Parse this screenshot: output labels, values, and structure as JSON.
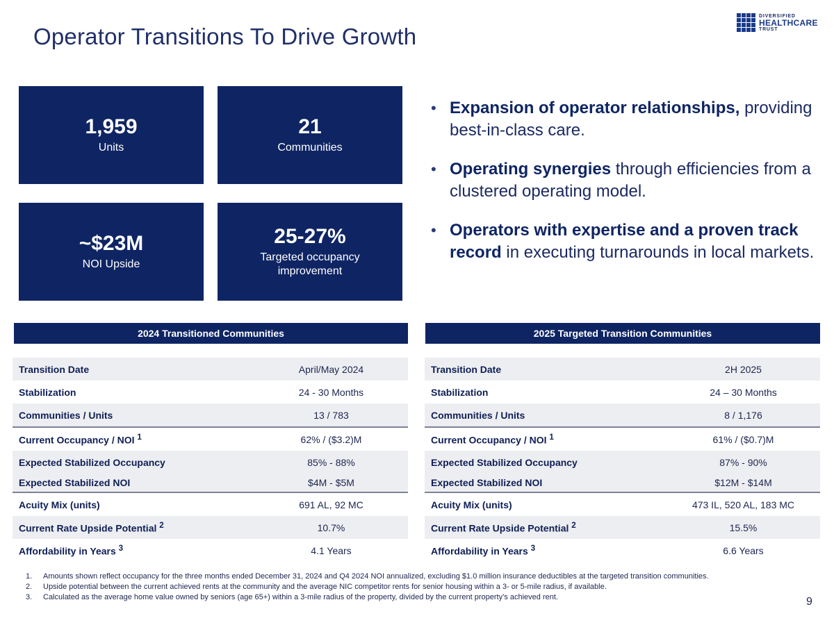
{
  "title": "Operator Transitions To Drive Growth",
  "logo": {
    "line1": "DIVERSIFIED",
    "line2": "HEALTHCARE",
    "line3": "TRUST"
  },
  "stats": [
    {
      "value": "1,959",
      "label": "Units",
      "label2": ""
    },
    {
      "value": "21",
      "label": "Communities",
      "label2": ""
    },
    {
      "value": "~$23M",
      "label": "NOI Upside",
      "label2": ""
    },
    {
      "value": "25-27%",
      "label": "Targeted occupancy",
      "label2": "improvement"
    }
  ],
  "bullets": [
    {
      "bold": "Expansion of operator relationships,",
      "rest": " providing best-in-class care."
    },
    {
      "bold": "Operating synergies",
      "rest": " through efficiencies from a clustered operating model."
    },
    {
      "bold": "Operators with expertise and a proven track record",
      "rest": " in executing turnarounds in local markets."
    }
  ],
  "tables": [
    {
      "heading": "2024 Transitioned Communities",
      "rows": [
        {
          "key": "Transition Date",
          "sup": "",
          "value": "April/May 2024"
        },
        {
          "key": "Stabilization",
          "sup": "",
          "value": "24 - 30 Months"
        },
        {
          "key": "Communities / Units",
          "sup": "",
          "value": "13 / 783"
        },
        {
          "key": "Current Occupancy / NOI",
          "sup": "1",
          "value": "62% / ($3.2)M"
        },
        {
          "key": "Expected Stabilized Occupancy",
          "sup": "",
          "value": "85% - 88%"
        },
        {
          "key": "Expected Stabilized NOI",
          "sup": "",
          "value": "$4M - $5M"
        },
        {
          "key": "Acuity Mix (units)",
          "sup": "",
          "value": "691 AL, 92 MC"
        },
        {
          "key": "Current Rate Upside Potential",
          "sup": "2",
          "value": "10.7%"
        },
        {
          "key": "Affordability in Years",
          "sup": "3",
          "value": "4.1 Years"
        }
      ]
    },
    {
      "heading": "2025 Targeted Transition Communities",
      "rows": [
        {
          "key": "Transition Date",
          "sup": "",
          "value": "2H 2025"
        },
        {
          "key": "Stabilization",
          "sup": "",
          "value": "24 – 30 Months"
        },
        {
          "key": "Communities / Units",
          "sup": "",
          "value": "8 / 1,176"
        },
        {
          "key": "Current Occupancy / NOI",
          "sup": "1",
          "value": "61% / ($0.7)M"
        },
        {
          "key": "Expected Stabilized Occupancy",
          "sup": "",
          "value": "87% - 90%"
        },
        {
          "key": "Expected Stabilized NOI",
          "sup": "",
          "value": "$12M - $14M"
        },
        {
          "key": "Acuity Mix (units)",
          "sup": "",
          "value": "473 IL, 520 AL, 183 MC"
        },
        {
          "key": "Current Rate Upside Potential",
          "sup": "2",
          "value": "15.5%"
        },
        {
          "key": "Affordability in Years",
          "sup": "3",
          "value": "6.6 Years"
        }
      ]
    }
  ],
  "footnotes": [
    {
      "n": "1.",
      "text": "Amounts shown reflect occupancy for the three months ended December 31, 2024 and Q4 2024 NOI annualized, excluding $1.0 million insurance deductibles at the targeted transition communities."
    },
    {
      "n": "2.",
      "text": "Upside potential between the current achieved rents at the community and the average NIC competitor rents for senior housing within a 3- or 5-mile radius, if available."
    },
    {
      "n": "3.",
      "text": "Calculated as the average home value owned by seniors (age 65+) within a 3-mile radius of the property, divided by the current property’s achieved rent."
    }
  ],
  "page_number": "9",
  "colors": {
    "navy": "#0f2563",
    "shade": "#edeef1"
  }
}
